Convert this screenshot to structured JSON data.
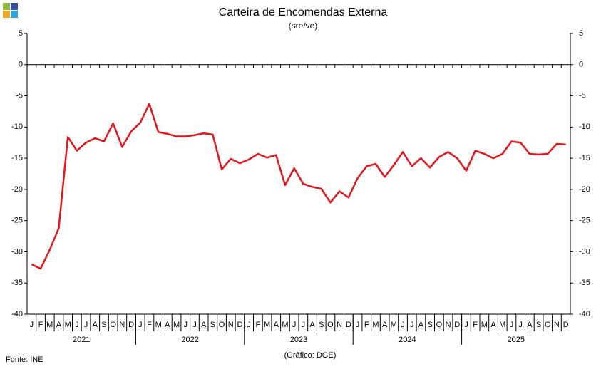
{
  "chart_data": {
    "type": "line",
    "title": "Carteira de Encomendas Externa",
    "subtitle": "(sre/ve)",
    "source": "Fonte: INE",
    "credit": "(Gráfico: DGE)",
    "categories": [
      "J",
      "F",
      "M",
      "A",
      "M",
      "J",
      "J",
      "A",
      "S",
      "O",
      "N",
      "D",
      "J",
      "F",
      "M",
      "A",
      "M",
      "J",
      "J",
      "A",
      "S",
      "O",
      "N",
      "D",
      "J",
      "F",
      "M",
      "A",
      "M",
      "J",
      "J",
      "A",
      "S",
      "O",
      "N",
      "D",
      "J",
      "F",
      "M",
      "A",
      "M",
      "J",
      "J",
      "A",
      "S",
      "O",
      "N",
      "D",
      "J",
      "F",
      "M",
      "A",
      "M",
      "J",
      "J",
      "A",
      "S",
      "O",
      "N",
      "D"
    ],
    "years": [
      "2021",
      "2022",
      "2023",
      "2024",
      "2025"
    ],
    "series": [
      {
        "color": "#e8141b",
        "values": [
          -32.0,
          -32.7,
          -29.7,
          -26.2,
          -11.6,
          -13.8,
          -12.5,
          -11.8,
          -12.3,
          -9.4,
          -13.2,
          -10.7,
          -9.3,
          -6.3,
          -10.8,
          -11.1,
          -11.5,
          -11.5,
          -11.3,
          -11.0,
          -11.2,
          -16.8,
          -15.1,
          -15.8,
          -15.2,
          -14.3,
          -14.9,
          -14.5,
          -19.3,
          -16.6,
          -19.1,
          -19.6,
          -19.9,
          -22.1,
          -20.3,
          -21.3,
          -18.2,
          -16.3,
          -15.9,
          -18.0,
          -16.1,
          -14.0,
          -16.3,
          -15.0,
          -16.5,
          -14.8,
          -14.0,
          -15.0,
          -17.0,
          -13.8,
          -14.3,
          -15.0,
          -14.3,
          -12.3,
          -12.5,
          -14.3,
          -14.4,
          -14.3,
          -12.7,
          -12.8
        ]
      }
    ],
    "ylim": [
      -40,
      5
    ],
    "yticks": [
      5,
      0,
      -5,
      -10,
      -15,
      -20,
      -25,
      -30,
      -35,
      -40
    ],
    "y2lim": [
      -40,
      5
    ],
    "y2ticks": [
      5,
      0,
      -5,
      -10,
      -15,
      -20,
      -25,
      -30,
      -35,
      -40
    ]
  }
}
